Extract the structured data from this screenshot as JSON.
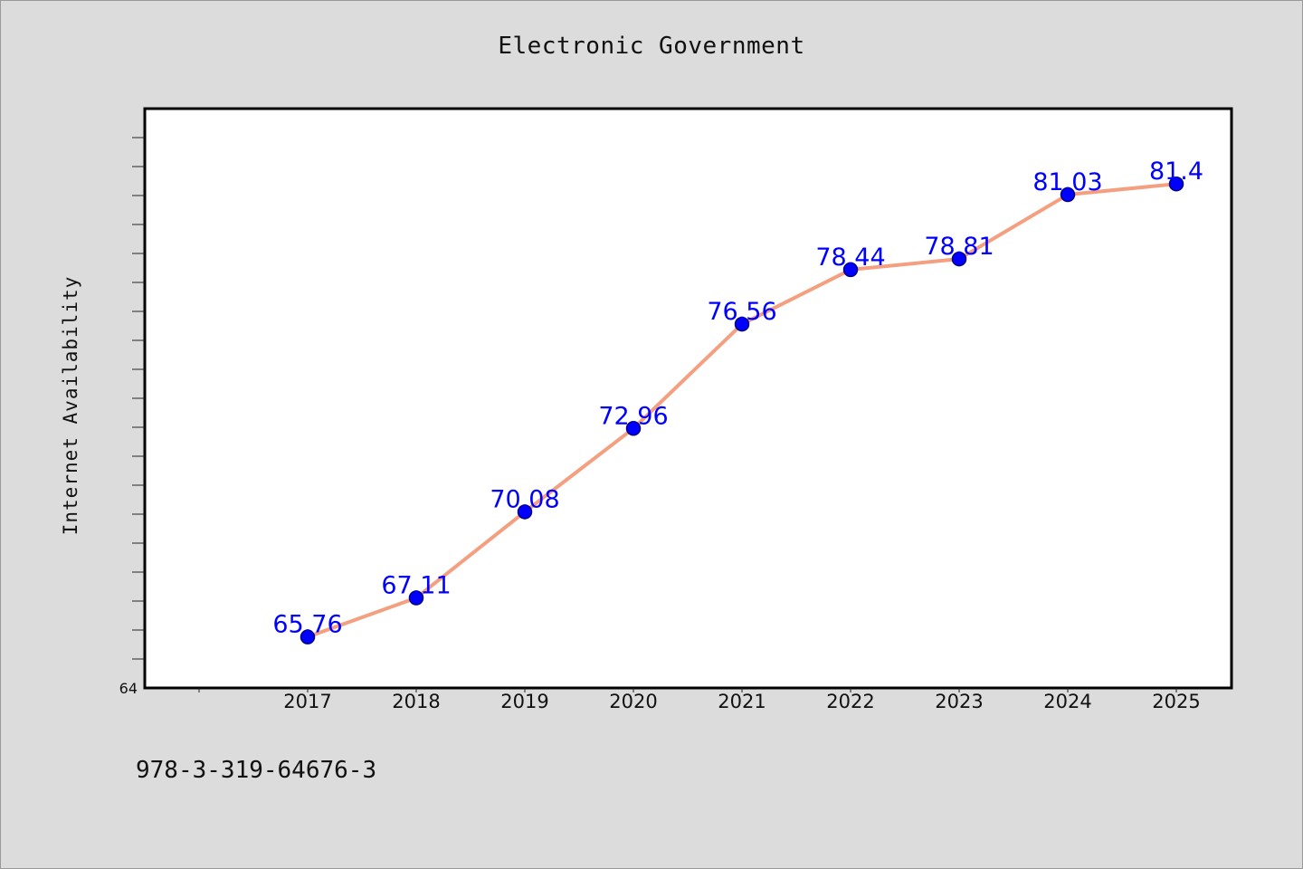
{
  "chart_data": {
    "type": "line",
    "title": "Electronic Government",
    "xlabel": "",
    "ylabel": "Internet Availability",
    "categories": [
      "2017",
      "2018",
      "2019",
      "2020",
      "2021",
      "2022",
      "2023",
      "2024",
      "2025"
    ],
    "series": [
      {
        "values": [
          65.76,
          67.11,
          70.08,
          72.96,
          76.56,
          78.44,
          78.81,
          81.03,
          81.4
        ],
        "labels": [
          "65.76",
          "67.11",
          "70.08",
          "72.96",
          "76.56",
          "78.44",
          "78.81",
          "81.03",
          "81.4"
        ]
      }
    ],
    "ylim": [
      64,
      84
    ],
    "y_tick_label": "64",
    "grid": false,
    "legend": "none",
    "colors": {
      "line": "#f4a080",
      "marker": "#0000ff",
      "marker_edge": "#000080",
      "data_label": "#0000ff",
      "plot_background": "#ffffff",
      "page_background": "#dcdcdc"
    }
  },
  "footer": {
    "code": "978-3-319-64676-3"
  }
}
